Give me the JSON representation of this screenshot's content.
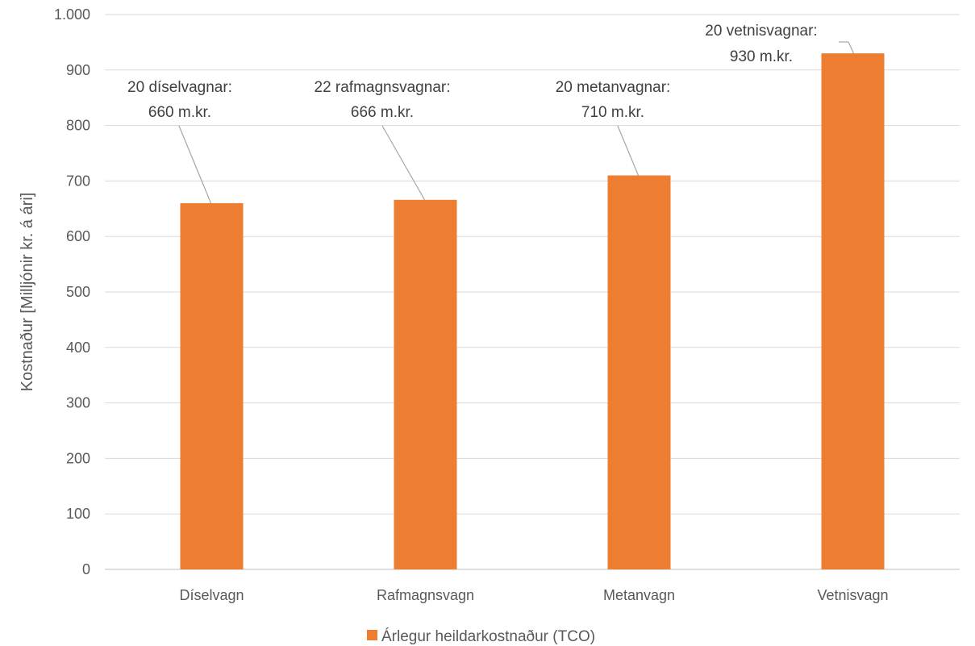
{
  "chart_data": {
    "type": "bar",
    "categories": [
      "Díselvagn",
      "Rafmagnsvagn",
      "Metanvagn",
      "Vetnisvagn"
    ],
    "series": [
      {
        "name": "Árlegur heildarkostnaður (TCO)",
        "values": [
          660,
          666,
          710,
          930
        ],
        "color": "#ED7D31"
      }
    ],
    "ylabel": "Kostnaður [Milljónir kr. á ári]",
    "ylim": [
      0,
      1000
    ],
    "yticks": [
      {
        "value": 0,
        "label": "0"
      },
      {
        "value": 100,
        "label": "100"
      },
      {
        "value": 200,
        "label": "200"
      },
      {
        "value": 300,
        "label": "300"
      },
      {
        "value": 400,
        "label": "400"
      },
      {
        "value": 500,
        "label": "500"
      },
      {
        "value": 600,
        "label": "600"
      },
      {
        "value": 700,
        "label": "700"
      },
      {
        "value": 800,
        "label": "800"
      },
      {
        "value": 900,
        "label": "900"
      },
      {
        "value": 1000,
        "label": "1.000"
      }
    ],
    "grid": true,
    "legend_position": "bottom",
    "annotations": [
      {
        "category": "Díselvagn",
        "line1": "20 díselvagnar:",
        "line2": "660 m.kr."
      },
      {
        "category": "Rafmagnsvagn",
        "line1": "22 rafmagnsvagnar:",
        "line2": "666 m.kr."
      },
      {
        "category": "Metanvagn",
        "line1": "20 metanvagnar:",
        "line2": "710 m.kr."
      },
      {
        "category": "Vetnisvagn",
        "line1": "20 vetnisvagnar:",
        "line2": "930 m.kr."
      }
    ]
  }
}
